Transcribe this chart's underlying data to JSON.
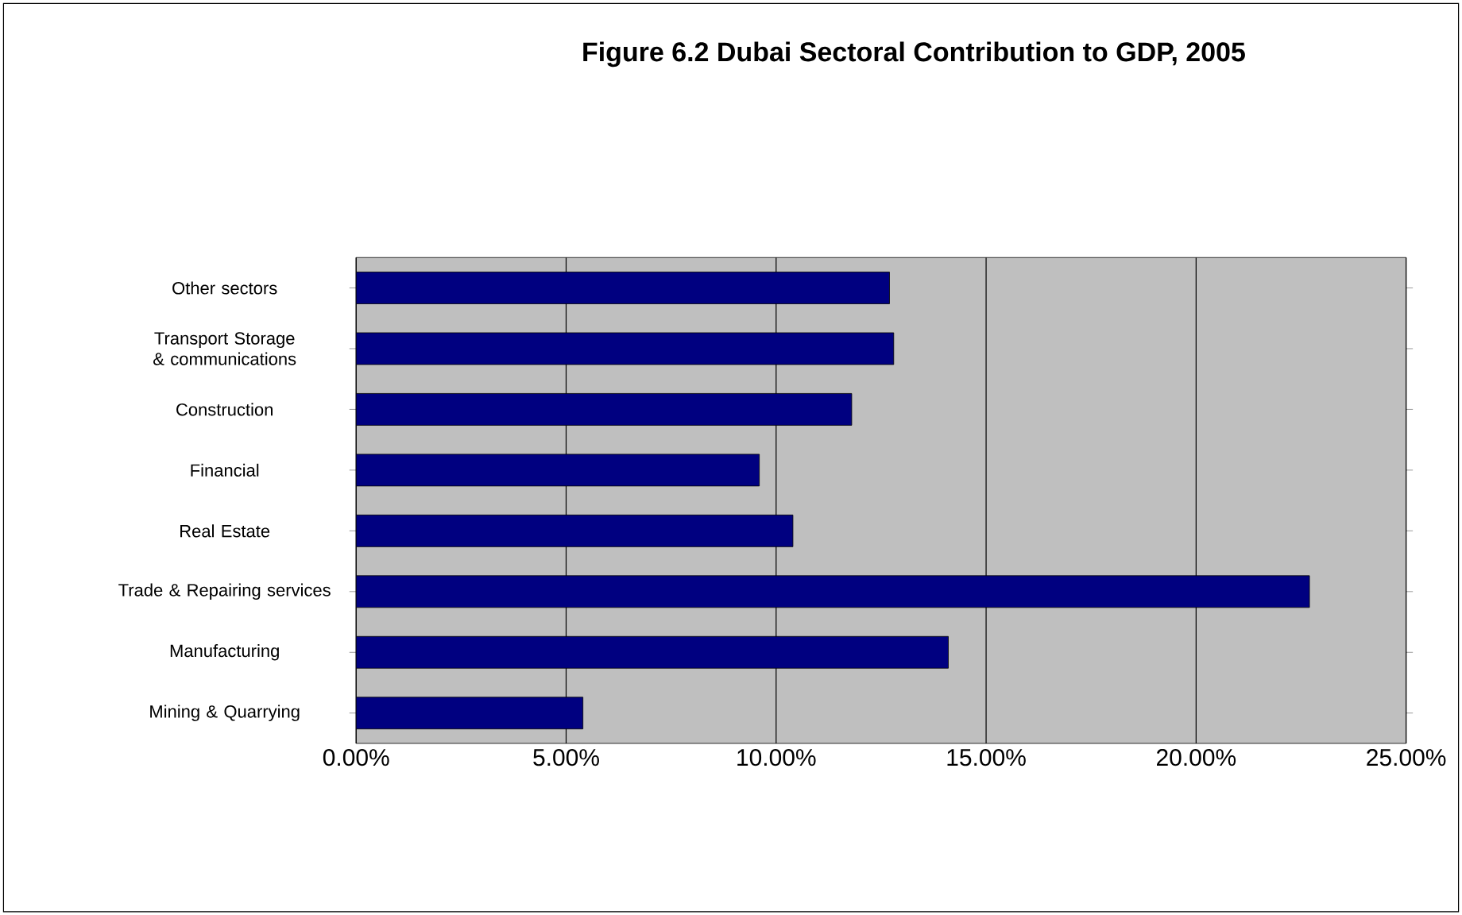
{
  "chart_data": {
    "type": "bar",
    "orientation": "horizontal",
    "title": "Figure 6.2 Dubai Sectoral Contribution to GDP, 2005",
    "categories": [
      "Other sectors",
      "Transport Storage & communications",
      "Construction",
      "Financial",
      "Real Estate",
      "Trade & Repairing services",
      "Manufacturing",
      "Mining & Quarrying"
    ],
    "values": [
      12.7,
      12.8,
      11.8,
      9.6,
      10.4,
      22.7,
      14.1,
      5.4
    ],
    "color": "#000080",
    "xlim": [
      0,
      25
    ],
    "xticks": [
      {
        "value": 0,
        "label": "0.00%"
      },
      {
        "value": 5,
        "label": "5.00%"
      },
      {
        "value": 10,
        "label": "10.00%"
      },
      {
        "value": 15,
        "label": "15.00%"
      },
      {
        "value": 20,
        "label": "20.00%"
      },
      {
        "value": 25,
        "label": "25.00%"
      }
    ],
    "grid": "x"
  }
}
